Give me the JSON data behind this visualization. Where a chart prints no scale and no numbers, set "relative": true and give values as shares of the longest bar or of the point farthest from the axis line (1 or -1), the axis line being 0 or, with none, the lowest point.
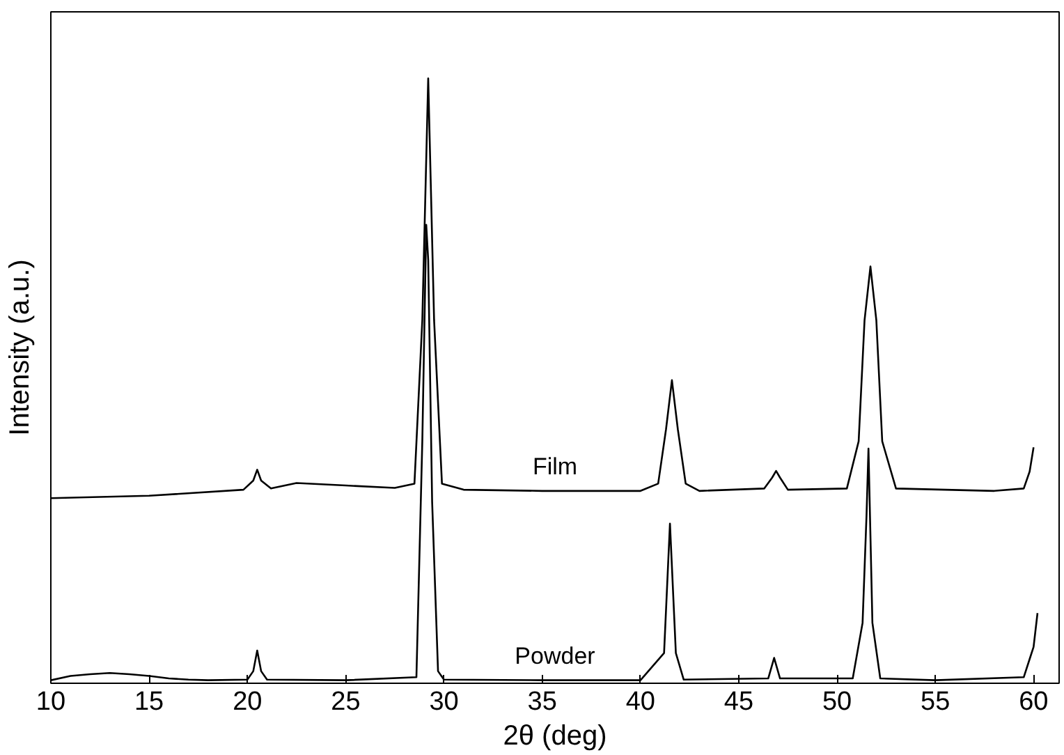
{
  "chart_data": {
    "type": "line",
    "relative": true,
    "xlabel": "2θ (deg)",
    "ylabel": "Intensity (a.u.)",
    "xlim": [
      10,
      61.3
    ],
    "xticks": [
      10,
      15,
      20,
      25,
      30,
      35,
      40,
      45,
      50,
      55,
      60
    ],
    "grid": false,
    "marker": "none",
    "line_style": "solid",
    "series": [
      {
        "name": "Film",
        "color": "#000000",
        "x": [
          10,
          15,
          19.8,
          20.3,
          20.5,
          20.7,
          21.2,
          22.5,
          25,
          27.5,
          28.5,
          28.9,
          29.2,
          29.5,
          29.9,
          31,
          35,
          40,
          40.9,
          41.3,
          41.6,
          41.9,
          42.3,
          43,
          46.3,
          46.7,
          46.9,
          47.1,
          47.5,
          50.5,
          51.1,
          51.4,
          51.7,
          52.0,
          52.3,
          53,
          58,
          59.5,
          59.8,
          60
        ],
        "values": [
          0.306,
          0.31,
          0.32,
          0.335,
          0.353,
          0.335,
          0.322,
          0.331,
          0.327,
          0.323,
          0.33,
          0.6,
          1.0,
          0.6,
          0.33,
          0.32,
          0.318,
          0.318,
          0.33,
          0.42,
          0.501,
          0.42,
          0.33,
          0.318,
          0.322,
          0.34,
          0.351,
          0.34,
          0.32,
          0.322,
          0.4,
          0.6,
          0.689,
          0.6,
          0.4,
          0.322,
          0.318,
          0.322,
          0.35,
          0.39
        ]
      },
      {
        "name": "Powder",
        "color": "#000000",
        "x": [
          10,
          11,
          12,
          13,
          14,
          15,
          16,
          17,
          18,
          20,
          20.3,
          20.5,
          20.7,
          21,
          25,
          28.6,
          28.9,
          29.1,
          29.2,
          29.4,
          29.7,
          30,
          35,
          40,
          41.2,
          41.5,
          41.8,
          42.2,
          46.5,
          46.8,
          47.1,
          50.8,
          51.3,
          51.5,
          51.6,
          51.8,
          52.2,
          55,
          59.5,
          59.8,
          60.0,
          60.2
        ],
        "values": [
          0.005,
          0.012,
          0.015,
          0.017,
          0.015,
          0.012,
          0.008,
          0.006,
          0.005,
          0.006,
          0.02,
          0.054,
          0.02,
          0.006,
          0.005,
          0.01,
          0.4,
          0.758,
          0.7,
          0.3,
          0.02,
          0.006,
          0.005,
          0.005,
          0.05,
          0.264,
          0.05,
          0.006,
          0.008,
          0.042,
          0.008,
          0.008,
          0.1,
          0.277,
          0.388,
          0.1,
          0.008,
          0.005,
          0.01,
          0.04,
          0.06,
          0.116
        ]
      }
    ]
  }
}
